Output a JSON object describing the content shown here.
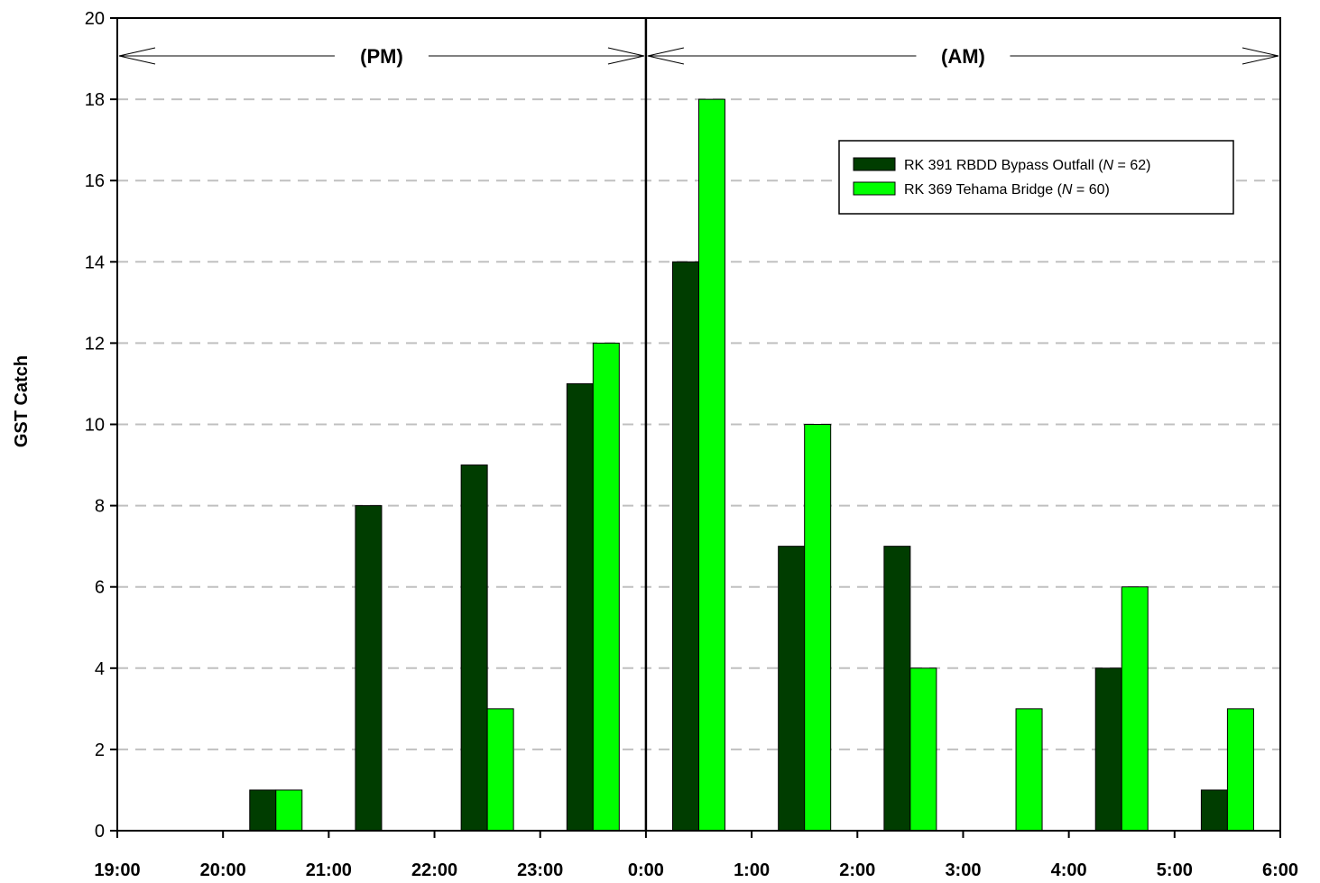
{
  "chart_data": {
    "type": "bar",
    "title": "",
    "xlabel": "",
    "ylabel": "GST Catch",
    "ylim": [
      0,
      20
    ],
    "y_ticks": [
      0,
      2,
      4,
      6,
      8,
      10,
      12,
      14,
      16,
      18,
      20
    ],
    "x_tick_labels": [
      "19:00",
      "20:00",
      "21:00",
      "22:00",
      "23:00",
      "0:00",
      "1:00",
      "2:00",
      "3:00",
      "4:00",
      "5:00",
      "6:00"
    ],
    "categories": [
      "19:00",
      "20:00",
      "21:00",
      "22:00",
      "23:00",
      "0:00",
      "1:00",
      "2:00",
      "3:00",
      "4:00",
      "5:00"
    ],
    "series": [
      {
        "name": "RK 391 RBDD Bypass Outfall (N = 62)",
        "label_prefix": "RK 391 RBDD Bypass Outfall (",
        "label_n": "N",
        "label_suffix": " = 62)",
        "color": "#003d00",
        "values": [
          0,
          1,
          8,
          9,
          11,
          14,
          7,
          7,
          0,
          4,
          1
        ]
      },
      {
        "name": "RK 369  Tehama Bridge (N = 60)",
        "label_prefix": "RK 369  Tehama Bridge (",
        "label_n": "N",
        "label_suffix": " = 60)",
        "color": "#00ff00",
        "values": [
          0,
          1,
          0,
          3,
          12,
          18,
          10,
          4,
          3,
          6,
          3
        ]
      }
    ],
    "annotations": [
      {
        "text": "(PM)",
        "from": "19:00",
        "to": "0:00"
      },
      {
        "text": "(AM)",
        "from": "0:00",
        "to": "6:00"
      }
    ],
    "divider_at": "0:00",
    "grid": "horizontal dashed",
    "legend_position": "upper-right"
  }
}
